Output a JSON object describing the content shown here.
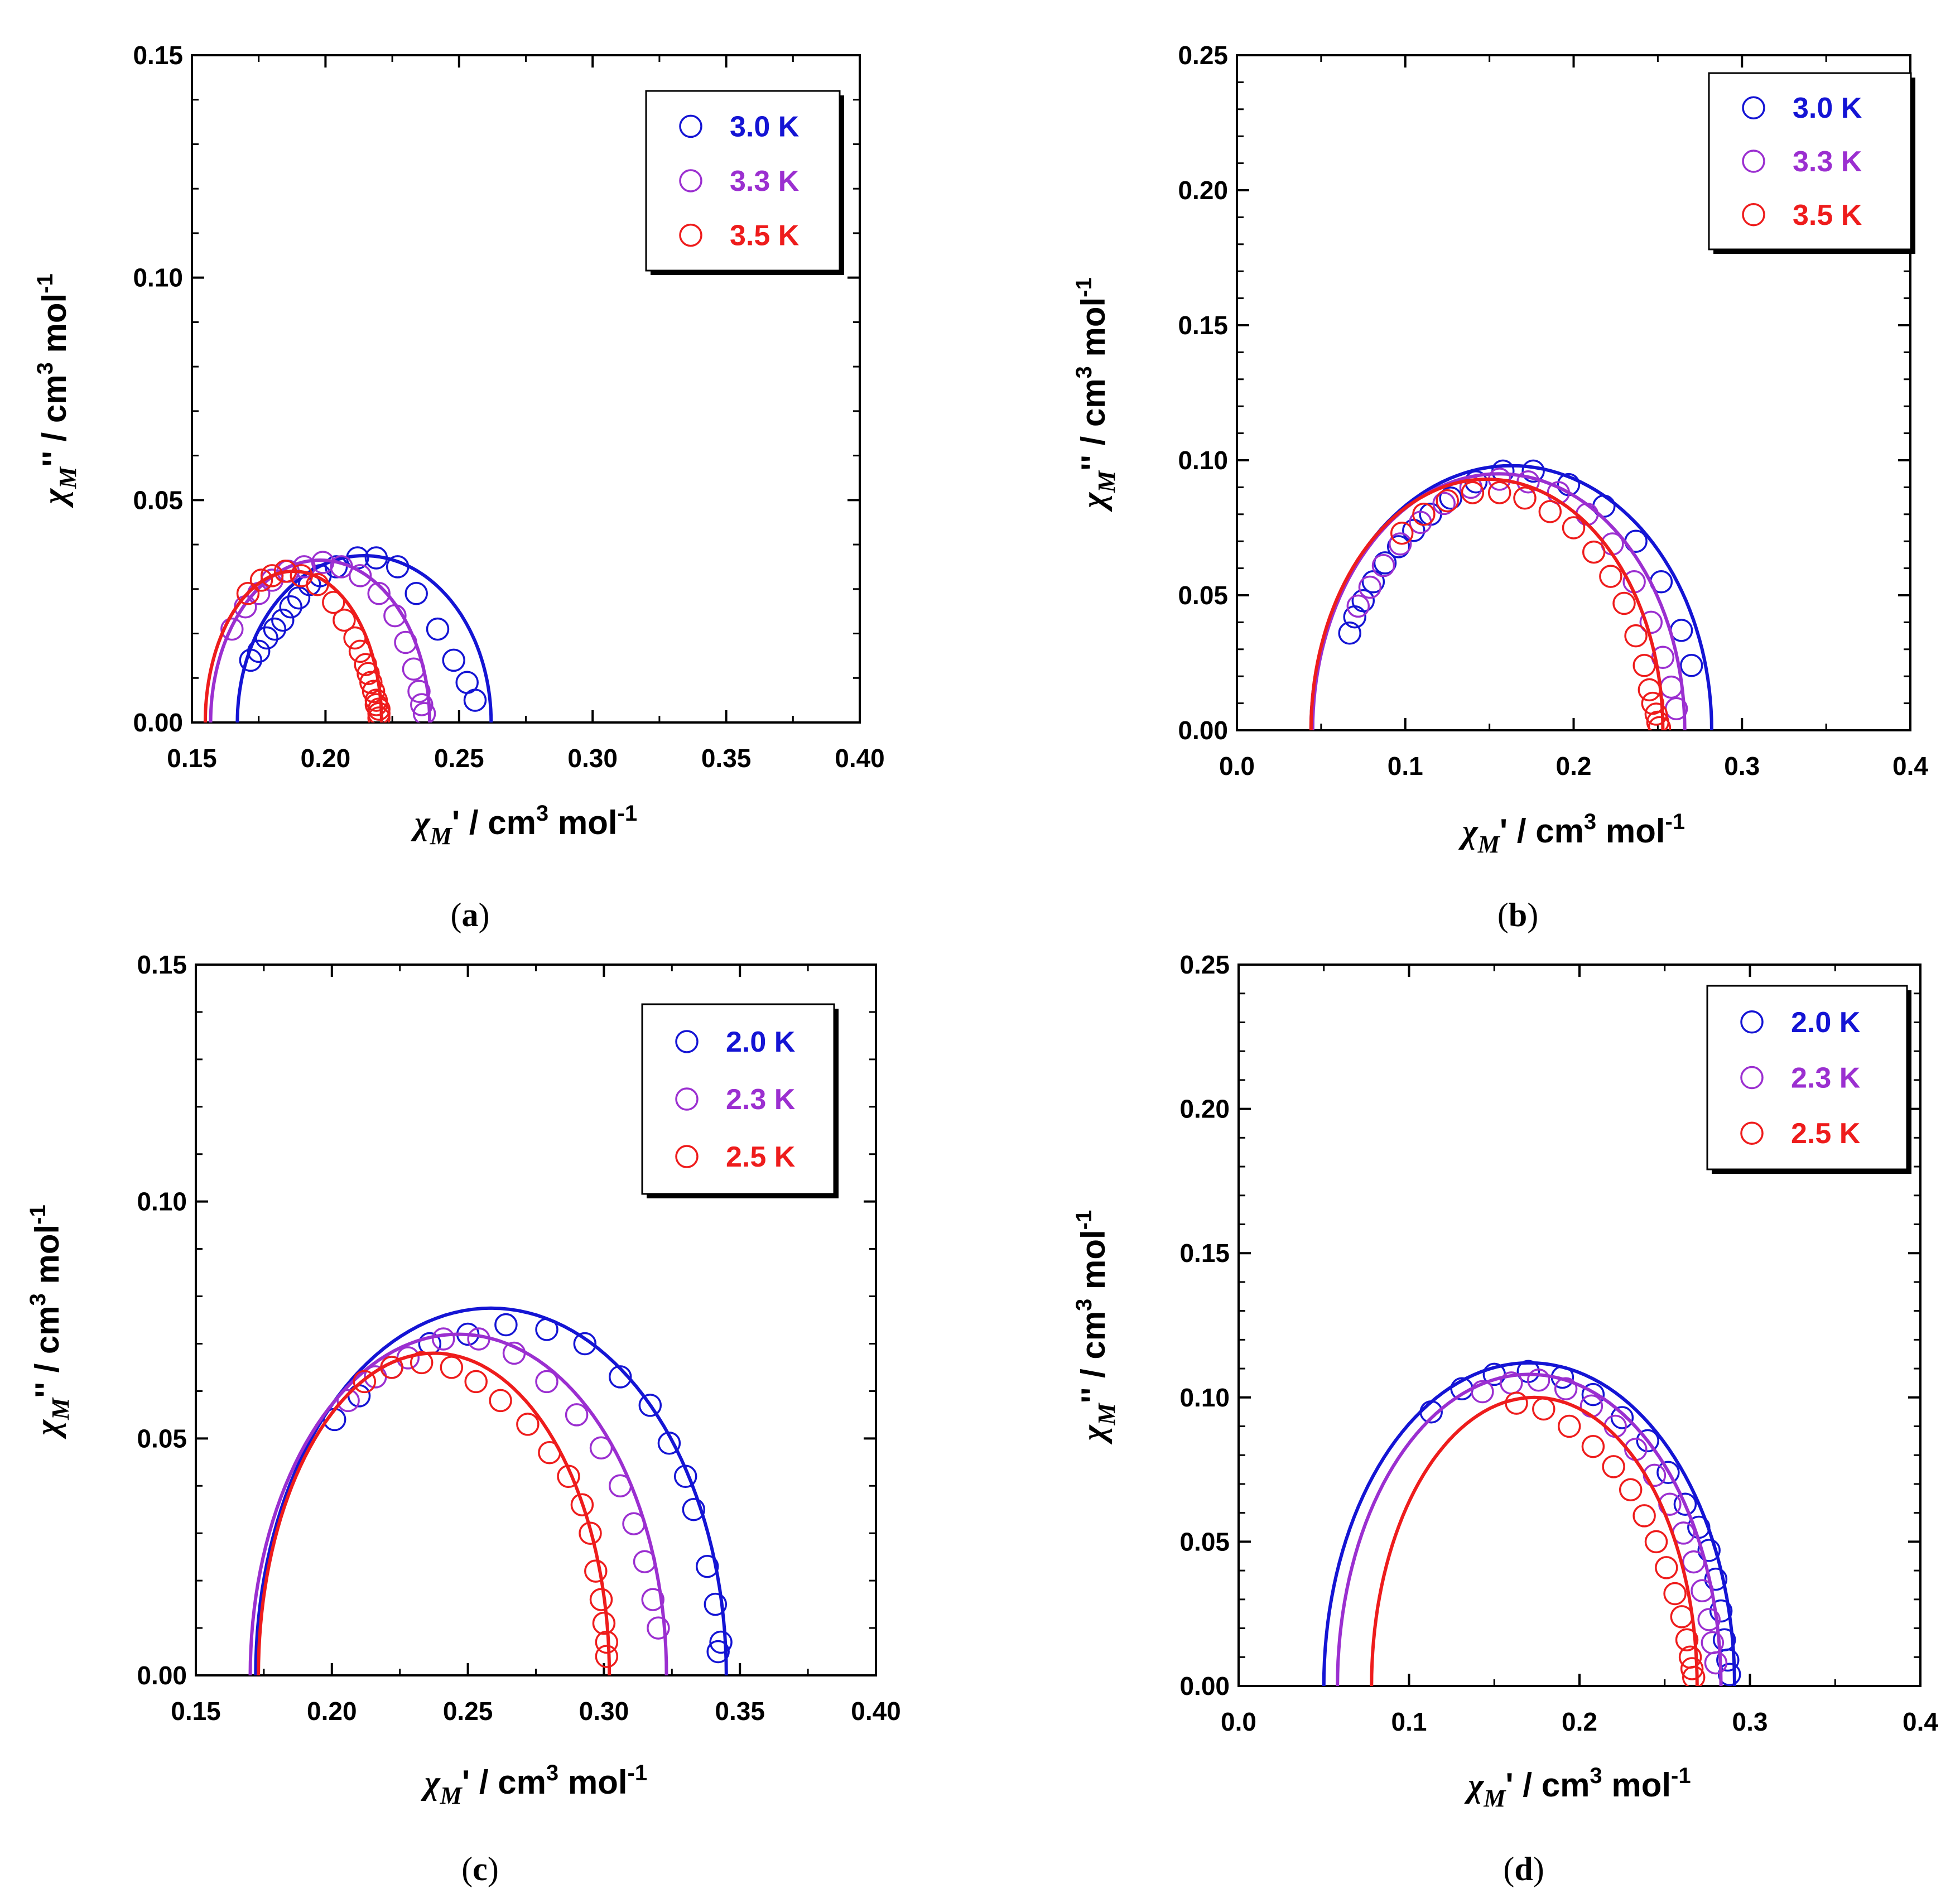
{
  "figure": {
    "panels": [
      {
        "label_open": "(",
        "label_letter": "a",
        "label_close": ")"
      },
      {
        "label_open": "(",
        "label_letter": "b",
        "label_close": ")"
      },
      {
        "label_open": "(",
        "label_letter": "c",
        "label_close": ")"
      },
      {
        "label_open": "(",
        "label_letter": "d",
        "label_close": ")"
      }
    ]
  },
  "chart_data": [
    {
      "type": "scatter",
      "xlabel": "χM' / cm3 mol-1",
      "ylabel": "χM'' / cm3 mol-1",
      "xlim": [
        0.15,
        0.4
      ],
      "ylim": [
        0.0,
        0.15
      ],
      "xticks": [
        "0.15",
        "0.20",
        "0.25",
        "0.30",
        "0.35",
        "0.40"
      ],
      "yticks": [
        "0.00",
        "0.05",
        "0.10",
        "0.15"
      ],
      "series": [
        {
          "name": "3.0 K",
          "color": "#1414d4",
          "x": [
            0.172,
            0.175,
            0.178,
            0.181,
            0.184,
            0.187,
            0.19,
            0.194,
            0.198,
            0.204,
            0.212,
            0.219,
            0.227,
            0.234,
            0.242,
            0.248,
            0.253,
            0.256
          ],
          "y": [
            0.014,
            0.016,
            0.019,
            0.021,
            0.023,
            0.026,
            0.028,
            0.031,
            0.033,
            0.035,
            0.037,
            0.037,
            0.035,
            0.029,
            0.021,
            0.014,
            0.009,
            0.005
          ],
          "fit": {
            "x_start": 0.167,
            "x_end": 0.262,
            "y_peak": 0.0375
          }
        },
        {
          "name": "3.3 K",
          "color": "#9b2fd0",
          "x": [
            0.165,
            0.17,
            0.175,
            0.18,
            0.186,
            0.192,
            0.199,
            0.206,
            0.213,
            0.22,
            0.226,
            0.23,
            0.233,
            0.235,
            0.236,
            0.237
          ],
          "y": [
            0.021,
            0.026,
            0.029,
            0.032,
            0.034,
            0.035,
            0.036,
            0.035,
            0.033,
            0.029,
            0.024,
            0.018,
            0.012,
            0.007,
            0.004,
            0.002
          ],
          "fit": {
            "x_start": 0.157,
            "x_end": 0.239,
            "y_peak": 0.0365
          }
        },
        {
          "name": "3.5 K",
          "color": "#ee1c1c",
          "x": [
            0.171,
            0.176,
            0.18,
            0.185,
            0.191,
            0.197,
            0.203,
            0.207,
            0.211,
            0.213,
            0.215,
            0.216,
            0.217,
            0.218,
            0.219,
            0.219,
            0.22,
            0.22,
            0.22
          ],
          "y": [
            0.029,
            0.032,
            0.033,
            0.034,
            0.033,
            0.031,
            0.027,
            0.023,
            0.019,
            0.016,
            0.013,
            0.011,
            0.009,
            0.007,
            0.005,
            0.004,
            0.003,
            0.002,
            0.001
          ],
          "fit": {
            "x_start": 0.155,
            "x_end": 0.221,
            "y_peak": 0.034
          }
        }
      ]
    },
    {
      "type": "scatter",
      "xlabel": "χM' / cm3 mol-1",
      "ylabel": "χM'' / cm3 mol-1",
      "xlim": [
        0.0,
        0.4
      ],
      "ylim": [
        0.0,
        0.25
      ],
      "xticks": [
        "0.0",
        "0.1",
        "0.2",
        "0.3",
        "0.4"
      ],
      "yticks": [
        "0.00",
        "0.05",
        "0.10",
        "0.15",
        "0.20",
        "0.25"
      ],
      "series": [
        {
          "name": "3.0 K",
          "color": "#1414d4",
          "x": [
            0.067,
            0.07,
            0.075,
            0.081,
            0.088,
            0.096,
            0.105,
            0.115,
            0.127,
            0.142,
            0.158,
            0.176,
            0.197,
            0.218,
            0.237,
            0.252,
            0.264,
            0.27
          ],
          "y": [
            0.036,
            0.042,
            0.048,
            0.055,
            0.062,
            0.068,
            0.074,
            0.08,
            0.086,
            0.092,
            0.096,
            0.096,
            0.091,
            0.083,
            0.07,
            0.055,
            0.037,
            0.024
          ],
          "fit": {
            "x_start": 0.044,
            "x_end": 0.282,
            "y_peak": 0.098
          }
        },
        {
          "name": "3.3 K",
          "color": "#9b2fd0",
          "x": [
            0.072,
            0.079,
            0.087,
            0.097,
            0.109,
            0.123,
            0.139,
            0.156,
            0.173,
            0.191,
            0.208,
            0.223,
            0.236,
            0.246,
            0.253,
            0.258,
            0.261
          ],
          "y": [
            0.046,
            0.053,
            0.061,
            0.069,
            0.077,
            0.084,
            0.09,
            0.093,
            0.092,
            0.088,
            0.08,
            0.069,
            0.055,
            0.04,
            0.027,
            0.016,
            0.008
          ],
          "fit": {
            "x_start": 0.045,
            "x_end": 0.266,
            "y_peak": 0.095
          }
        },
        {
          "name": "3.5 K",
          "color": "#ee1c1c",
          "x": [
            0.098,
            0.111,
            0.125,
            0.14,
            0.156,
            0.171,
            0.186,
            0.2,
            0.212,
            0.222,
            0.23,
            0.237,
            0.242,
            0.245,
            0.247,
            0.249,
            0.25,
            0.251
          ],
          "y": [
            0.073,
            0.08,
            0.085,
            0.088,
            0.088,
            0.086,
            0.081,
            0.075,
            0.066,
            0.057,
            0.047,
            0.035,
            0.024,
            0.015,
            0.01,
            0.006,
            0.003,
            0.001
          ],
          "fit": {
            "x_start": 0.044,
            "x_end": 0.253,
            "y_peak": 0.093
          }
        }
      ]
    },
    {
      "type": "scatter",
      "xlabel": "χM' / cm3 mol-1",
      "ylabel": "χM'' / cm3 mol-1",
      "xlim": [
        0.15,
        0.4
      ],
      "ylim": [
        0.0,
        0.15
      ],
      "xticks": [
        "0.15",
        "0.20",
        "0.25",
        "0.30",
        "0.35",
        "0.40"
      ],
      "yticks": [
        "0.00",
        "0.05",
        "0.10",
        "0.15"
      ],
      "series": [
        {
          "name": "2.0 K",
          "color": "#1414d4",
          "x": [
            0.201,
            0.21,
            0.222,
            0.236,
            0.25,
            0.264,
            0.279,
            0.293,
            0.306,
            0.317,
            0.324,
            0.33,
            0.333,
            0.338,
            0.341,
            0.343,
            0.342
          ],
          "y": [
            0.054,
            0.059,
            0.065,
            0.07,
            0.072,
            0.074,
            0.073,
            0.07,
            0.063,
            0.057,
            0.049,
            0.042,
            0.035,
            0.023,
            0.015,
            0.007,
            0.005
          ],
          "fit": {
            "x_start": 0.172,
            "x_end": 0.345,
            "y_peak": 0.0775
          }
        },
        {
          "name": "2.3 K",
          "color": "#9b2fd0",
          "x": [
            0.206,
            0.216,
            0.228,
            0.241,
            0.254,
            0.267,
            0.279,
            0.29,
            0.299,
            0.306,
            0.311,
            0.315,
            0.318,
            0.32
          ],
          "y": [
            0.058,
            0.063,
            0.067,
            0.071,
            0.071,
            0.068,
            0.062,
            0.055,
            0.048,
            0.04,
            0.032,
            0.024,
            0.016,
            0.01
          ],
          "fit": {
            "x_start": 0.17,
            "x_end": 0.323,
            "y_peak": 0.072
          }
        },
        {
          "name": "2.5 K",
          "color": "#ee1c1c",
          "x": [
            0.212,
            0.222,
            0.233,
            0.244,
            0.253,
            0.262,
            0.272,
            0.28,
            0.287,
            0.292,
            0.295,
            0.297,
            0.299,
            0.3,
            0.301,
            0.301
          ],
          "y": [
            0.062,
            0.065,
            0.066,
            0.065,
            0.062,
            0.058,
            0.053,
            0.047,
            0.042,
            0.036,
            0.03,
            0.022,
            0.016,
            0.011,
            0.007,
            0.004
          ],
          "fit": {
            "x_start": 0.173,
            "x_end": 0.302,
            "y_peak": 0.068
          }
        }
      ]
    },
    {
      "type": "scatter",
      "xlabel": "χM' / cm3 mol-1",
      "ylabel": "χM'' / cm3 mol-1",
      "xlim": [
        0.0,
        0.4
      ],
      "ylim": [
        0.0,
        0.25
      ],
      "xticks": [
        "0.0",
        "0.1",
        "0.2",
        "0.3",
        "0.4"
      ],
      "yticks": [
        "0.00",
        "0.05",
        "0.10",
        "0.15",
        "0.20",
        "0.25"
      ],
      "series": [
        {
          "name": "2.0 K",
          "color": "#1414d4",
          "x": [
            0.113,
            0.131,
            0.15,
            0.17,
            0.19,
            0.208,
            0.225,
            0.24,
            0.252,
            0.262,
            0.27,
            0.276,
            0.28,
            0.283,
            0.285,
            0.287,
            0.288
          ],
          "y": [
            0.095,
            0.103,
            0.108,
            0.109,
            0.107,
            0.101,
            0.093,
            0.085,
            0.074,
            0.063,
            0.055,
            0.047,
            0.037,
            0.026,
            0.016,
            0.009,
            0.004
          ],
          "fit": {
            "x_start": 0.05,
            "x_end": 0.291,
            "y_peak": 0.112
          }
        },
        {
          "name": "2.3 K",
          "color": "#9b2fd0",
          "x": [
            0.143,
            0.16,
            0.176,
            0.192,
            0.207,
            0.221,
            0.233,
            0.244,
            0.253,
            0.261,
            0.267,
            0.272,
            0.276,
            0.278,
            0.28
          ],
          "y": [
            0.102,
            0.105,
            0.106,
            0.103,
            0.097,
            0.09,
            0.082,
            0.073,
            0.063,
            0.053,
            0.043,
            0.033,
            0.023,
            0.015,
            0.008
          ],
          "fit": {
            "x_start": 0.058,
            "x_end": 0.283,
            "y_peak": 0.108
          }
        },
        {
          "name": "2.5 K",
          "color": "#ee1c1c",
          "x": [
            0.163,
            0.179,
            0.194,
            0.208,
            0.22,
            0.23,
            0.238,
            0.245,
            0.251,
            0.256,
            0.26,
            0.263,
            0.265,
            0.266,
            0.267
          ],
          "y": [
            0.098,
            0.096,
            0.09,
            0.083,
            0.076,
            0.068,
            0.059,
            0.05,
            0.041,
            0.032,
            0.024,
            0.016,
            0.01,
            0.006,
            0.003
          ],
          "fit": {
            "x_start": 0.078,
            "x_end": 0.269,
            "y_peak": 0.1
          }
        }
      ]
    }
  ]
}
